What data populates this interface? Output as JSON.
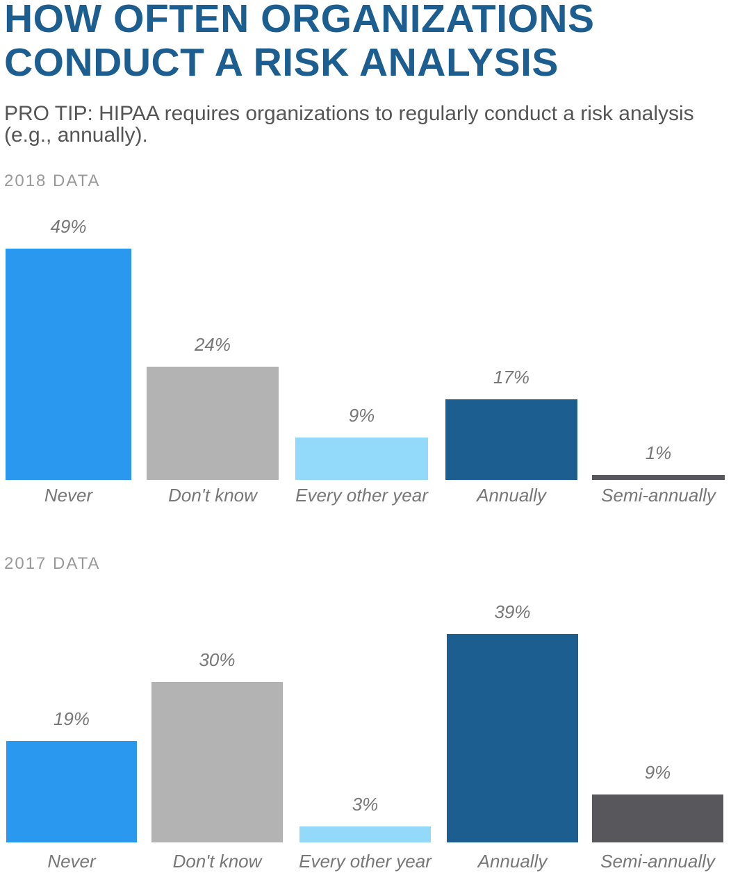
{
  "header": {
    "title_line1": "HOW OFTEN ORGANIZATIONS",
    "title_line2": "CONDUCT A RISK ANALYSIS",
    "subtitle": "PRO TIP: HIPAA requires organizations to regularly conduct a risk analysis (e.g., annually)."
  },
  "colors": {
    "title": "#1d5e91",
    "Never": "#2b98f0",
    "Don't know": "#b3b3b3",
    "Every other year": "#93dafa",
    "Annually": "#1d5e91",
    "Semi-annually": "#58585c"
  },
  "chart_data": [
    {
      "type": "bar",
      "title": "2018 DATA",
      "categories": [
        "Never",
        "Don't know",
        "Every other year",
        "Annually",
        "Semi-annually"
      ],
      "values": [
        49,
        24,
        9,
        17,
        1
      ],
      "value_labels": [
        "49%",
        "24%",
        "9%",
        "17%",
        "1%"
      ],
      "unit": "%",
      "grid": false
    },
    {
      "type": "bar",
      "title": "2017 DATA",
      "categories": [
        "Never",
        "Don't know",
        "Every other year",
        "Annually",
        "Semi-annually"
      ],
      "values": [
        19,
        30,
        3,
        39,
        9
      ],
      "value_labels": [
        "19%",
        "30%",
        "3%",
        "39%",
        "9%"
      ],
      "unit": "%",
      "grid": false
    }
  ]
}
